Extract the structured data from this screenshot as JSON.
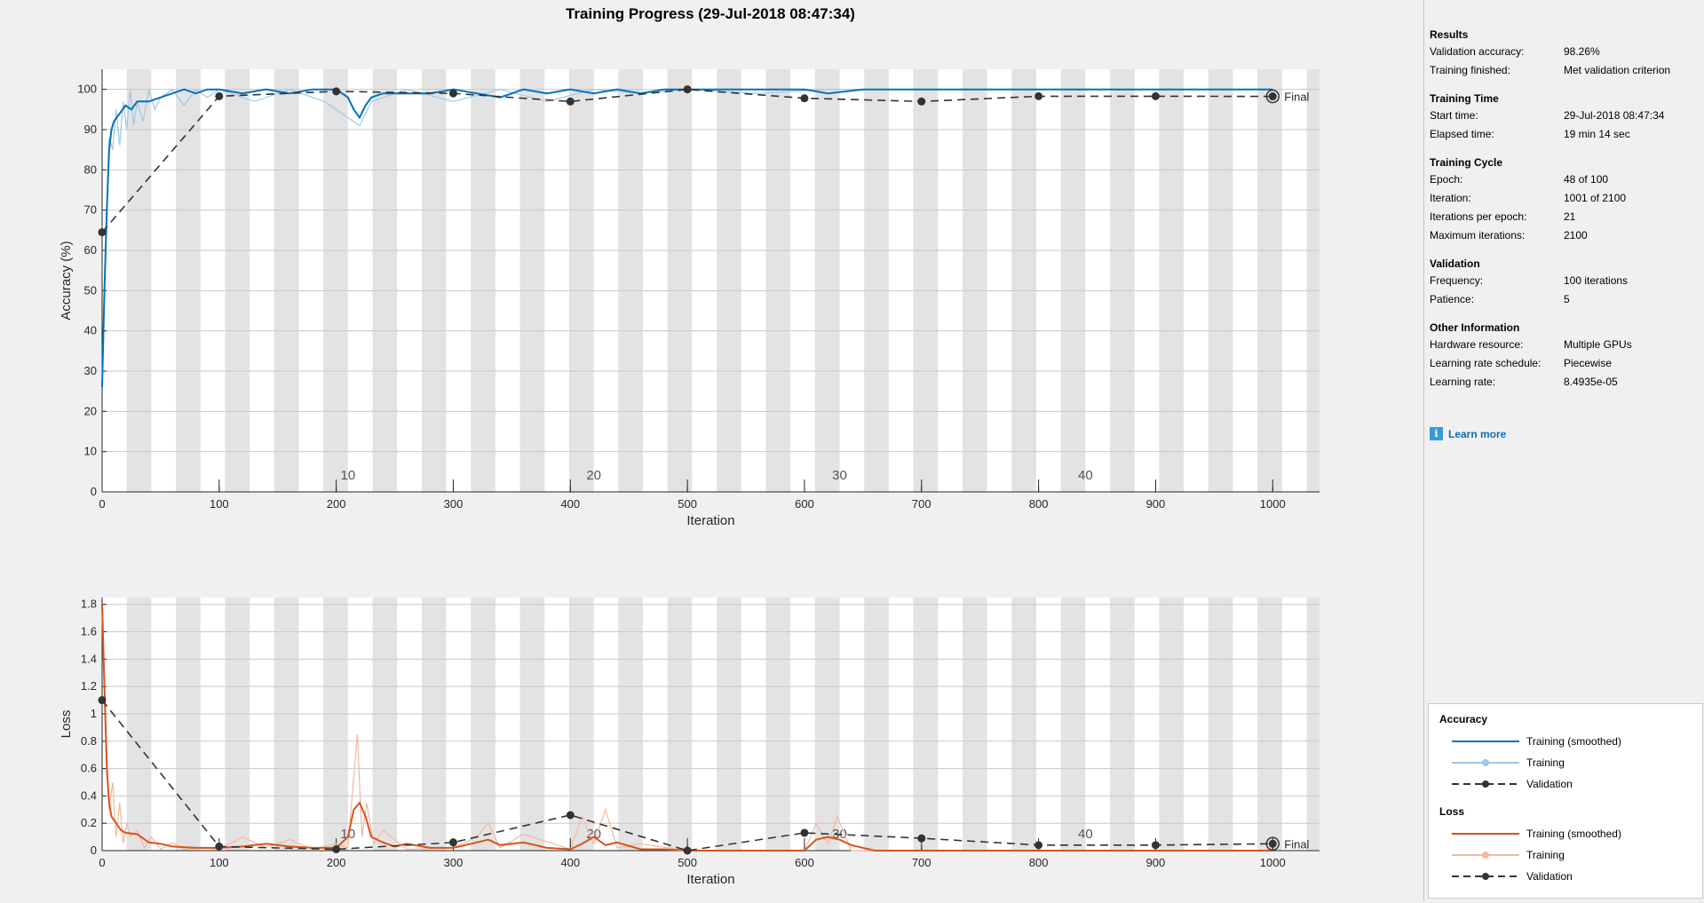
{
  "title": "Training Progress (29-Jul-2018 08:47:34)",
  "colors": {
    "accuracy_smoothed": "#0072bd",
    "accuracy_raw": "#9fc8e6",
    "loss_smoothed": "#d95319",
    "loss_raw": "#f2b9a0",
    "validation": "#333333",
    "epoch_band": "#e3e3e3"
  },
  "final_label": "Final",
  "epoch_labels": [
    "10",
    "20",
    "30",
    "40"
  ],
  "side_panel": {
    "results": {
      "heading": "Results",
      "rows": [
        {
          "label": "Validation accuracy:",
          "value": "98.26%"
        },
        {
          "label": "Training finished:",
          "value": "Met validation criterion"
        }
      ]
    },
    "training_time": {
      "heading": "Training Time",
      "rows": [
        {
          "label": "Start time:",
          "value": "29-Jul-2018 08:47:34"
        },
        {
          "label": "Elapsed time:",
          "value": "19 min 14 sec"
        }
      ]
    },
    "training_cycle": {
      "heading": "Training Cycle",
      "rows": [
        {
          "label": "Epoch:",
          "value": "48 of 100"
        },
        {
          "label": "Iteration:",
          "value": "1001 of 2100"
        },
        {
          "label": "Iterations per epoch:",
          "value": "21"
        },
        {
          "label": "Maximum iterations:",
          "value": "2100"
        }
      ]
    },
    "validation": {
      "heading": "Validation",
      "rows": [
        {
          "label": "Frequency:",
          "value": "100 iterations"
        },
        {
          "label": "Patience:",
          "value": "5"
        }
      ]
    },
    "other": {
      "heading": "Other Information",
      "rows": [
        {
          "label": "Hardware resource:",
          "value": "Multiple GPUs"
        },
        {
          "label": "Learning rate schedule:",
          "value": "Piecewise"
        },
        {
          "label": "Learning rate:",
          "value": "8.4935e-05"
        }
      ]
    },
    "learn_more": "Learn more",
    "info_icon": "info-icon"
  },
  "legend": {
    "accuracy_heading": "Accuracy",
    "loss_heading": "Loss",
    "accuracy_items": [
      "Training (smoothed)",
      "Training",
      "Validation"
    ],
    "loss_items": [
      "Training (smoothed)",
      "Training",
      "Validation"
    ]
  },
  "chart_data": [
    {
      "type": "line",
      "ylabel": "Accuracy (%)",
      "xlabel": "Iteration",
      "xlim": [
        0,
        1040
      ],
      "ylim": [
        0,
        105
      ],
      "xticks": [
        0,
        100,
        200,
        300,
        400,
        500,
        600,
        700,
        800,
        900,
        1000
      ],
      "yticks": [
        0,
        10,
        20,
        30,
        40,
        50,
        60,
        70,
        80,
        90,
        100
      ],
      "grid": true,
      "series": [
        {
          "name": "Training (smoothed)",
          "x": [
            0,
            2,
            4,
            6,
            8,
            10,
            15,
            20,
            25,
            30,
            40,
            50,
            60,
            70,
            80,
            90,
            100,
            120,
            140,
            160,
            180,
            200,
            210,
            215,
            220,
            225,
            230,
            240,
            260,
            280,
            300,
            320,
            340,
            360,
            380,
            400,
            420,
            440,
            460,
            480,
            500,
            550,
            600,
            620,
            650,
            700,
            750,
            800,
            850,
            900,
            950,
            1000
          ],
          "y": [
            26,
            50,
            70,
            85,
            90,
            92,
            94,
            96,
            95,
            97,
            97,
            98,
            99,
            100,
            99,
            100,
            100,
            99,
            100,
            99,
            100,
            100,
            98,
            95,
            93,
            96,
            98,
            99,
            99,
            99,
            100,
            99,
            98,
            100,
            99,
            100,
            99,
            100,
            99,
            100,
            100,
            100,
            100,
            99,
            100,
            100,
            100,
            100,
            100,
            100,
            100,
            100
          ]
        },
        {
          "name": "Training",
          "x": [
            0,
            3,
            6,
            9,
            12,
            15,
            18,
            21,
            24,
            27,
            30,
            35,
            40,
            45,
            50,
            60,
            70,
            80,
            90,
            100,
            130,
            160,
            190,
            210,
            220,
            230,
            260,
            300,
            340,
            380,
            420,
            460,
            500,
            560,
            620,
            680,
            740,
            800,
            860,
            920,
            1000
          ],
          "y": [
            26,
            62,
            88,
            85,
            95,
            86,
            97,
            90,
            100,
            91,
            97,
            92,
            100,
            95,
            98,
            100,
            96,
            100,
            98,
            100,
            97,
            100,
            97,
            93,
            91,
            97,
            100,
            97,
            100,
            97,
            100,
            99,
            100,
            99,
            100,
            100,
            100,
            100,
            100,
            100,
            100
          ]
        },
        {
          "name": "Validation",
          "x": [
            0,
            100,
            200,
            300,
            400,
            500,
            600,
            700,
            800,
            900,
            1000
          ],
          "y": [
            64.5,
            98.3,
            99.5,
            99,
            97,
            100,
            97.8,
            97,
            98.3,
            98.3,
            98.26
          ]
        }
      ]
    },
    {
      "type": "line",
      "ylabel": "Loss",
      "xlabel": "Iteration",
      "xlim": [
        0,
        1040
      ],
      "ylim": [
        0,
        1.85
      ],
      "xticks": [
        0,
        100,
        200,
        300,
        400,
        500,
        600,
        700,
        800,
        900,
        1000
      ],
      "yticks": [
        0,
        0.2,
        0.4,
        0.6,
        0.8,
        1,
        1.2,
        1.4,
        1.6,
        1.8
      ],
      "grid": true,
      "series": [
        {
          "name": "Training (smoothed)",
          "x": [
            0,
            2,
            4,
            6,
            8,
            12,
            16,
            20,
            30,
            40,
            50,
            60,
            80,
            100,
            120,
            140,
            160,
            180,
            200,
            210,
            215,
            220,
            225,
            230,
            240,
            250,
            260,
            280,
            300,
            320,
            330,
            340,
            360,
            380,
            400,
            410,
            420,
            430,
            440,
            460,
            480,
            500,
            550,
            600,
            610,
            620,
            630,
            640,
            660,
            700,
            750,
            800,
            850,
            900,
            950,
            1000
          ],
          "y": [
            1.8,
            1.2,
            0.6,
            0.35,
            0.25,
            0.2,
            0.15,
            0.13,
            0.12,
            0.06,
            0.05,
            0.03,
            0.02,
            0.02,
            0.03,
            0.05,
            0.03,
            0.02,
            0.02,
            0.1,
            0.3,
            0.35,
            0.25,
            0.1,
            0.06,
            0.03,
            0.05,
            0.02,
            0.02,
            0.06,
            0.08,
            0.04,
            0.06,
            0.02,
            0.01,
            0.05,
            0.1,
            0.04,
            0.06,
            0.01,
            0.01,
            0.0,
            0.0,
            0.0,
            0.08,
            0.1,
            0.08,
            0.04,
            0.0,
            0.0,
            0.0,
            0.0,
            0.0,
            0.0,
            0.0,
            0.0
          ]
        },
        {
          "name": "Training",
          "x": [
            0,
            3,
            6,
            9,
            12,
            15,
            18,
            21,
            24,
            30,
            36,
            42,
            50,
            60,
            70,
            80,
            100,
            120,
            140,
            160,
            180,
            200,
            210,
            218,
            222,
            226,
            232,
            240,
            260,
            300,
            320,
            330,
            340,
            360,
            400,
            410,
            420,
            430,
            440,
            460,
            500,
            600,
            610,
            620,
            628,
            640,
            700,
            800,
            1000
          ],
          "y": [
            1.8,
            0.9,
            0.3,
            0.5,
            0.1,
            0.35,
            0.05,
            0.2,
            0.1,
            0.15,
            0.02,
            0.1,
            0.01,
            0.06,
            0.01,
            0.02,
            0.01,
            0.1,
            0.02,
            0.08,
            0.01,
            0.05,
            0.02,
            0.85,
            0.1,
            0.35,
            0.05,
            0.15,
            0.01,
            0.02,
            0.1,
            0.2,
            0.02,
            0.12,
            0.01,
            0.25,
            0.05,
            0.3,
            0.02,
            0.05,
            0.0,
            0.0,
            0.2,
            0.05,
            0.25,
            0.0,
            0.0,
            0.0,
            0.0
          ]
        },
        {
          "name": "Validation",
          "x": [
            0,
            100,
            200,
            300,
            400,
            500,
            600,
            700,
            800,
            900,
            1000
          ],
          "y": [
            1.1,
            0.03,
            0.01,
            0.06,
            0.26,
            0.0,
            0.13,
            0.09,
            0.04,
            0.04,
            0.05
          ]
        }
      ]
    }
  ]
}
